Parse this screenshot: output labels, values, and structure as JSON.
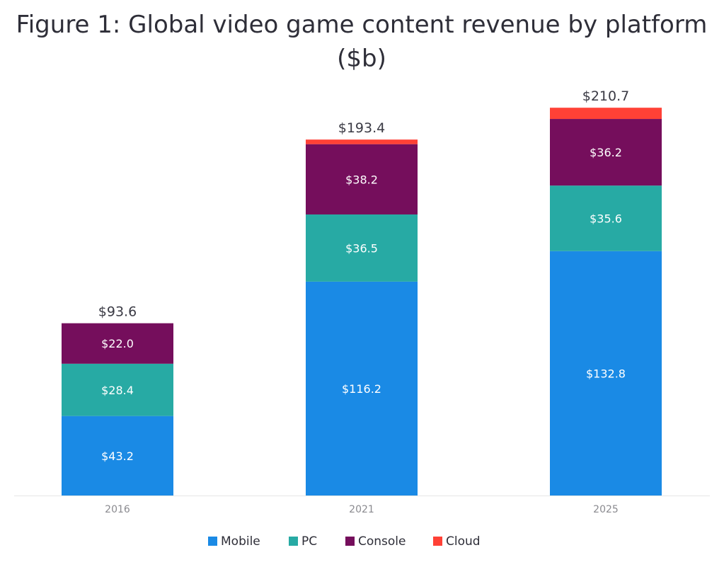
{
  "title_line1": "Figure 1: Global video game content revenue by platform",
  "title_line2": "($b)",
  "chart_data": {
    "type": "bar",
    "stacked": true,
    "title": "Figure 1: Global video game content revenue by platform ($b)",
    "xlabel": "",
    "ylabel": "",
    "categories": [
      "2016",
      "2021",
      "2025"
    ],
    "ylim": [
      0,
      220
    ],
    "grid": false,
    "legend_position": "bottom",
    "series": [
      {
        "name": "Mobile",
        "color": "#1a8ae5",
        "values": [
          43.2,
          116.2,
          132.8
        ],
        "labels": [
          "$43.2",
          "$116.2",
          "$132.8"
        ]
      },
      {
        "name": "PC",
        "color": "#27aaa4",
        "values": [
          28.4,
          36.5,
          35.6
        ],
        "labels": [
          "$28.4",
          "$36.5",
          "$35.6"
        ]
      },
      {
        "name": "Console",
        "color": "#750e5c",
        "values": [
          22.0,
          38.2,
          36.2
        ],
        "labels": [
          "$22.0",
          "$38.2",
          "$36.2"
        ]
      },
      {
        "name": "Cloud",
        "color": "#ff4136",
        "values": [
          0.0,
          2.5,
          6.1
        ],
        "labels": [
          "",
          "",
          ""
        ]
      }
    ],
    "totals": [
      93.6,
      193.4,
      210.7
    ],
    "total_labels": [
      "$93.6",
      "$193.4",
      "$210.7"
    ]
  }
}
